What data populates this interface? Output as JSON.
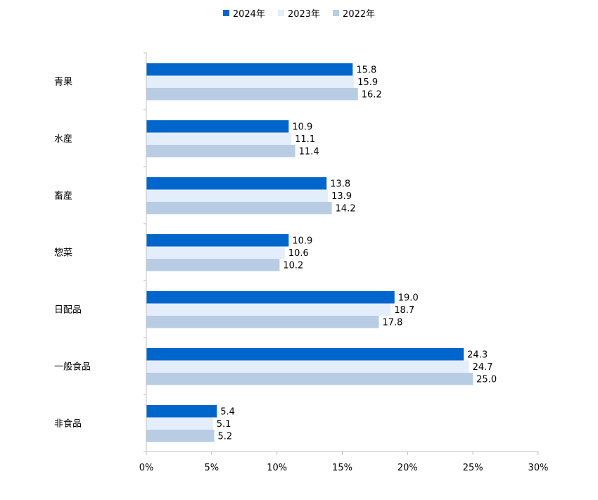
{
  "chart_data": {
    "type": "bar",
    "orientation": "horizontal",
    "categories": [
      "青果",
      "水産",
      "畜産",
      "惣菜",
      "日配品",
      "一般食品",
      "非食品"
    ],
    "series": [
      {
        "name": "2024年",
        "color": "#0066cc",
        "values": [
          15.8,
          10.9,
          13.8,
          10.9,
          19.0,
          24.3,
          5.4
        ]
      },
      {
        "name": "2023年",
        "color": "#e3eefa",
        "values": [
          15.9,
          11.1,
          13.9,
          10.6,
          18.7,
          24.7,
          5.1
        ]
      },
      {
        "name": "2022年",
        "color": "#b8cce4",
        "values": [
          16.2,
          11.4,
          14.2,
          10.2,
          17.8,
          25.0,
          5.2
        ]
      }
    ],
    "xlim": [
      0,
      30
    ],
    "x_ticks": [
      "0%",
      "5%",
      "10%",
      "15%",
      "20%",
      "25%",
      "30%"
    ],
    "data_labels": [
      [
        "15.8",
        "15.9",
        "16.2"
      ],
      [
        "10.9",
        "11.1",
        "11.4"
      ],
      [
        "13.8",
        "13.9",
        "14.2"
      ],
      [
        "10.9",
        "10.6",
        "10.2"
      ],
      [
        "19.0",
        "18.7",
        "17.8"
      ],
      [
        "24.3",
        "24.7",
        "25.0"
      ],
      [
        "5.4",
        "5.1",
        "5.2"
      ]
    ],
    "legend_position": "top-center",
    "grid": false
  }
}
